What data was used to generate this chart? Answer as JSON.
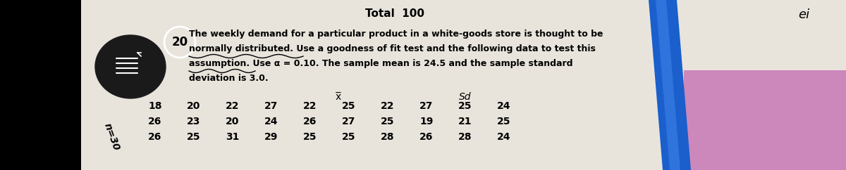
{
  "bg_color": "#e8e4dc",
  "left_black": "#000000",
  "right_blue": "#2255cc",
  "right_purple": "#9955aa",
  "title_text": "Total  100",
  "corner_text": "ei",
  "question_num": "20",
  "para1": "The weekly demand for a particular product in a white-goods store is thought to be",
  "para2": "normally distributed. Use a goodness of fit test and the following data to test this",
  "para3": "assumption. Use α = 0.10. The sample mean is 24.5 and the sample standard",
  "para4": "deviation is 3.0.",
  "xbar_label": "x̅",
  "sd_label": "Sd",
  "n_label": "n=30",
  "data_row1": [
    "18",
    "20",
    "22",
    "27",
    "22",
    "25",
    "22",
    "27",
    "25",
    "24"
  ],
  "data_row2": [
    "26",
    "23",
    "20",
    "24",
    "26",
    "27",
    "25",
    "19",
    "21",
    "25"
  ],
  "data_row3": [
    "26",
    "25",
    "31",
    "29",
    "25",
    "25",
    "28",
    "26",
    "28",
    "24"
  ],
  "font_size_title": 11,
  "font_size_para": 9.0,
  "font_size_data": 10,
  "font_size_num": 11
}
